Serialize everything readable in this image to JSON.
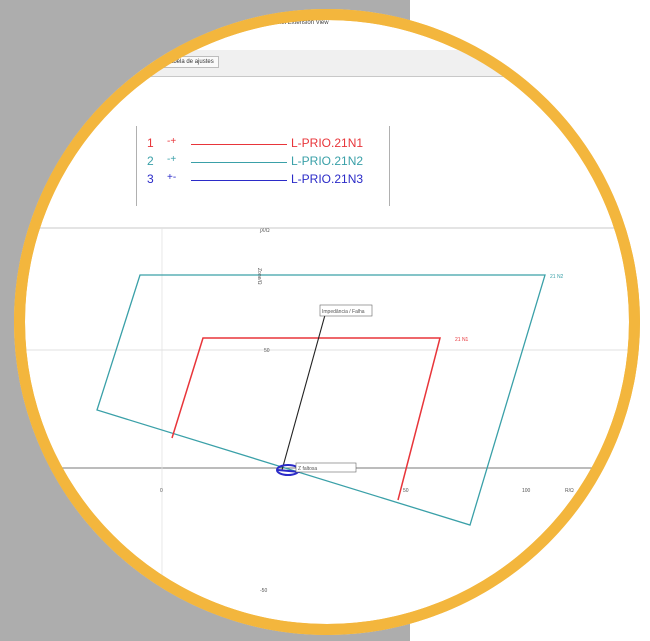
{
  "window": {
    "title": "Tablet Extension View"
  },
  "toolbar": {
    "tab_label": "Tabela de ajustes"
  },
  "legend": {
    "items": [
      {
        "num": "1",
        "mark": "-+",
        "label": "L-PRIO.21N1",
        "color": "#e8353a"
      },
      {
        "num": "2",
        "mark": "-+",
        "label": "L-PRIO.21N2",
        "color": "#3aa0a8"
      },
      {
        "num": "3",
        "mark": "+-",
        "label": "L-PRIO.21N3",
        "color": "#2b2bc8"
      }
    ]
  },
  "plot": {
    "top_label": "jX/Ω",
    "vertical_axis_label": "Zone/Ω",
    "mid_label": "50",
    "bottom_label": "-50",
    "x_ticks": [
      "0",
      "50",
      "100"
    ],
    "x_axis_label": "R/Ω",
    "zone1_label": "21 N1",
    "zone2_label": "21 N2",
    "fault_box_label": "Impedância / Falha",
    "origin_label": "Z faltosa"
  },
  "colors": {
    "ring": "#f3b63d",
    "zone1": "#e8353a",
    "zone2": "#3aa0a8",
    "zone3": "#2b2bc8",
    "axis": "#555555",
    "fault_line": "#222222"
  }
}
